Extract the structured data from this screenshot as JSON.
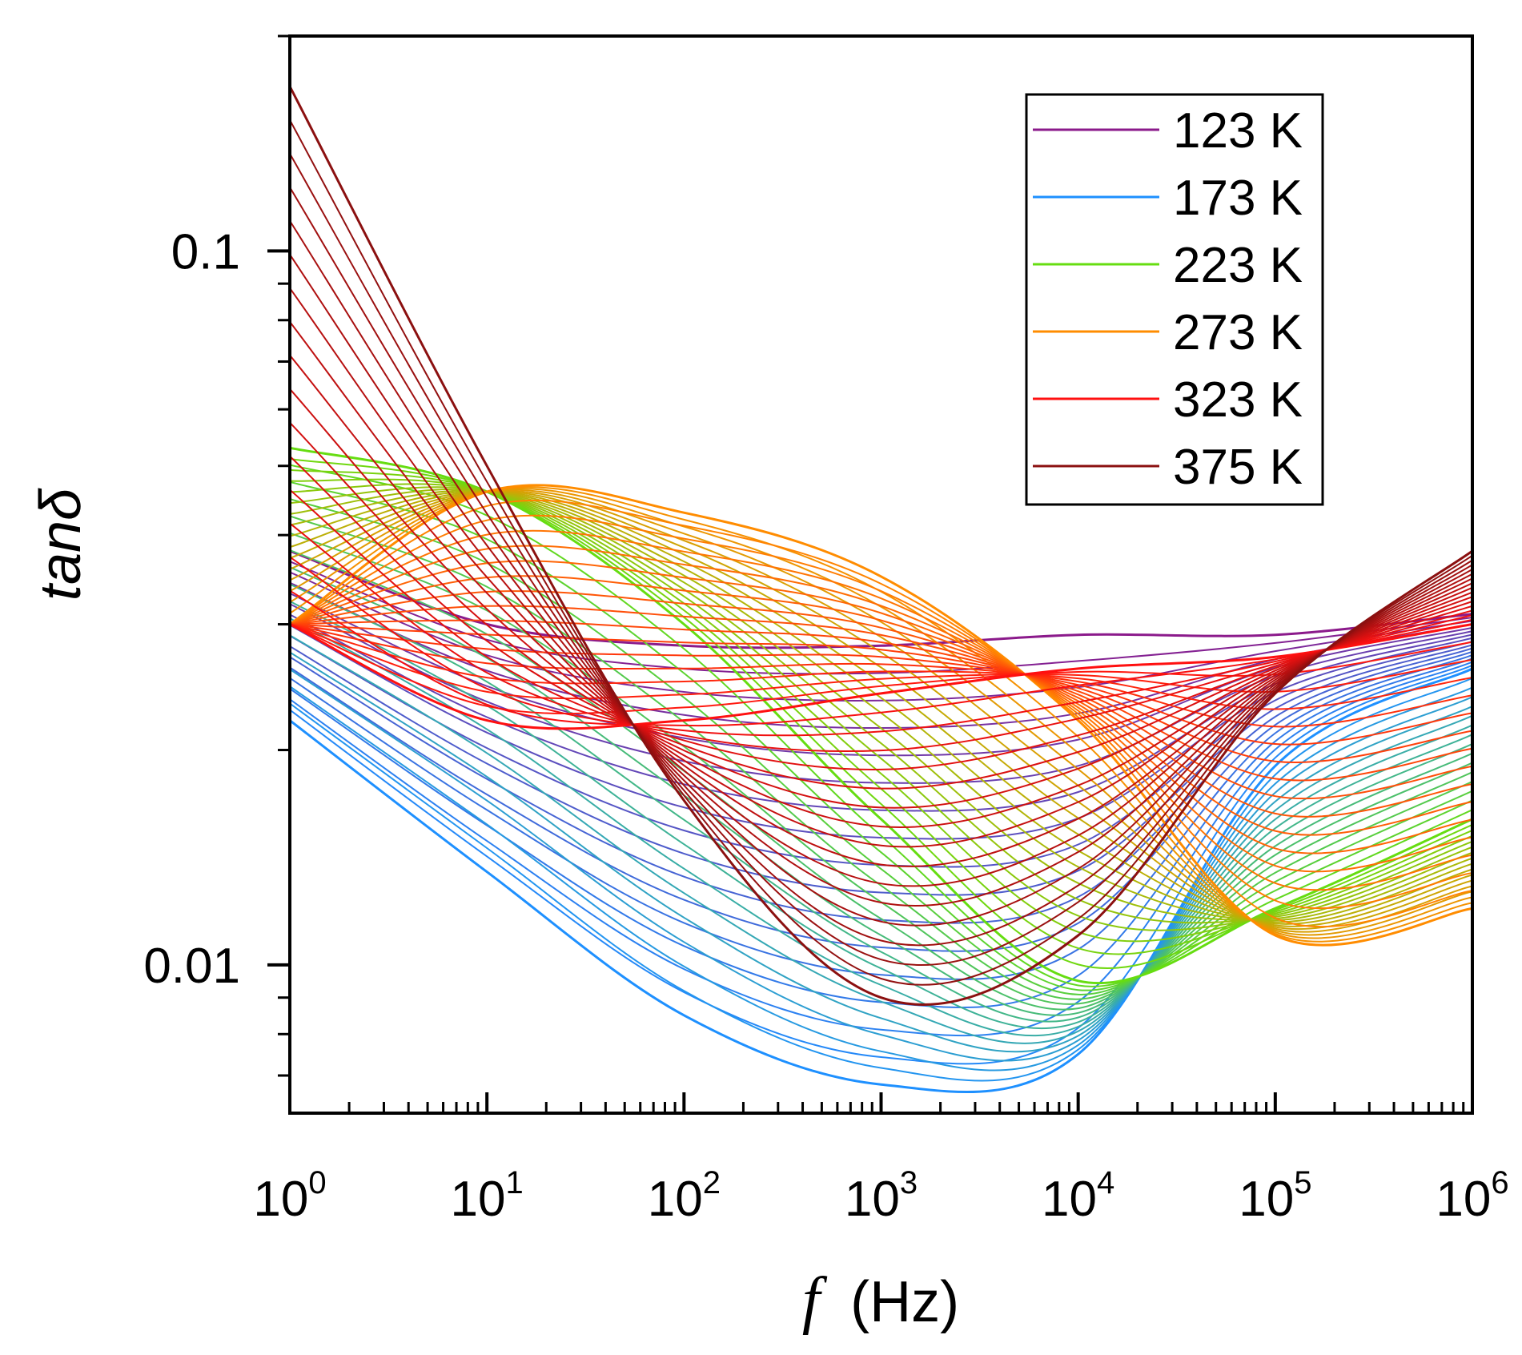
{
  "chart_data": {
    "type": "line",
    "title": "",
    "xlabel": "f (Hz)",
    "xlabel_symbol": "f",
    "xlabel_unit": "(Hz)",
    "ylabel": "tanδ",
    "xscale": "log",
    "yscale": "log",
    "xlim": [
      1,
      1000000
    ],
    "ylim": [
      0.0062,
      0.2
    ],
    "x_ticks": [
      {
        "value": 1,
        "base": "10",
        "exp": "0"
      },
      {
        "value": 10,
        "base": "10",
        "exp": "1"
      },
      {
        "value": 100,
        "base": "10",
        "exp": "2"
      },
      {
        "value": 1000,
        "base": "10",
        "exp": "3"
      },
      {
        "value": 10000,
        "base": "10",
        "exp": "4"
      },
      {
        "value": 100000,
        "base": "10",
        "exp": "5"
      },
      {
        "value": 1000000,
        "base": "10",
        "exp": "6"
      }
    ],
    "y_ticks": [
      {
        "value": 0.01,
        "label": "0.01"
      },
      {
        "value": 0.1,
        "label": "0.1"
      }
    ],
    "legend_position": "top-right",
    "legend": [
      {
        "label": "123 K",
        "color": "#8B1A8B"
      },
      {
        "label": "173 K",
        "color": "#1E90FF"
      },
      {
        "label": "223 K",
        "color": "#66DD11"
      },
      {
        "label": "273 K",
        "color": "#FF8C00"
      },
      {
        "label": "323 K",
        "color": "#FF1010"
      },
      {
        "label": "375 K",
        "color": "#8B1010"
      }
    ],
    "series_count_per_band": 16,
    "series_stride_K": 1,
    "series": [
      {
        "name": "123 K",
        "color": "#8B1A8B",
        "x": [
          1,
          10,
          100,
          1000,
          10000,
          100000,
          1000000
        ],
        "y": [
          0.038,
          0.03,
          0.028,
          0.028,
          0.029,
          0.029,
          0.031
        ]
      },
      {
        "name": "173 K",
        "color": "#1E90FF",
        "x": [
          1,
          10,
          100,
          1000,
          10000,
          100000,
          1000000
        ],
        "y": [
          0.022,
          0.0135,
          0.0085,
          0.0068,
          0.0075,
          0.019,
          0.026
        ]
      },
      {
        "name": "223 K",
        "color": "#66DD11",
        "x": [
          1,
          10,
          100,
          1000,
          10000,
          100000,
          1000000
        ],
        "y": [
          0.053,
          0.046,
          0.03,
          0.016,
          0.0095,
          0.012,
          0.016
        ]
      },
      {
        "name": "273 K",
        "color": "#FF8C00",
        "x": [
          1,
          10,
          100,
          1000,
          10000,
          100000,
          1000000
        ],
        "y": [
          0.03,
          0.046,
          0.043,
          0.035,
          0.022,
          0.011,
          0.012
        ]
      },
      {
        "name": "323 K",
        "color": "#FF1010",
        "x": [
          1,
          10,
          100,
          1000,
          10000,
          100000,
          1000000
        ],
        "y": [
          0.03,
          0.022,
          0.022,
          0.024,
          0.026,
          0.027,
          0.03
        ]
      },
      {
        "name": "375 K",
        "color": "#8B1010",
        "x": [
          1,
          10,
          100,
          1000,
          10000,
          100000,
          1000000
        ],
        "y": [
          0.17,
          0.05,
          0.017,
          0.009,
          0.011,
          0.024,
          0.038
        ]
      }
    ]
  }
}
